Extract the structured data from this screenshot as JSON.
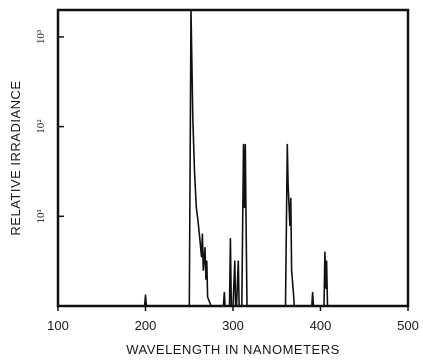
{
  "chart_data": {
    "type": "line",
    "xlabel": "WAVELENGTH IN NANOMETERS",
    "ylabel": "RELATIVE IRRADIANCE",
    "xlim": [
      100,
      500
    ],
    "ylim": [
      0,
      3.3
    ],
    "y_scale": "log",
    "x_ticks": [
      100,
      200,
      300,
      400,
      500
    ],
    "x_tick_labels": [
      "100",
      "200",
      "300",
      "400",
      "500"
    ],
    "y_ticks": [
      1,
      2,
      3
    ],
    "y_tick_labels": [
      "10¹",
      "10²",
      "10³"
    ],
    "grid": false,
    "series": [
      {
        "x": [
          100,
          199,
          200,
          201,
          250,
          252,
          254,
          256,
          258,
          260,
          262,
          264,
          265,
          266,
          268,
          269,
          270,
          271,
          275,
          289,
          290,
          291,
          296,
          297,
          298,
          300,
          302,
          303,
          304,
          306,
          307,
          308,
          310,
          312,
          313,
          314,
          315,
          316,
          318,
          334,
          360,
          362,
          363,
          365,
          366,
          367,
          369,
          370,
          390,
          391,
          392,
          404,
          405,
          406,
          407,
          408,
          500
        ],
        "y": [
          0,
          0,
          0.12,
          0,
          0,
          3.3,
          2.1,
          1.5,
          1.1,
          0.95,
          0.75,
          0.55,
          0.8,
          0.4,
          0.65,
          0.3,
          0.5,
          0.1,
          0,
          0,
          0.15,
          0,
          0,
          0.75,
          0,
          0,
          0.5,
          0,
          0,
          0.5,
          0,
          0,
          0,
          1.8,
          1.1,
          1.8,
          0.9,
          0,
          0,
          0,
          0,
          1.8,
          1.35,
          0.9,
          1.2,
          0.4,
          0.15,
          0,
          0,
          0.15,
          0,
          0,
          0.6,
          0.2,
          0.5,
          0,
          0
        ]
      }
    ]
  }
}
